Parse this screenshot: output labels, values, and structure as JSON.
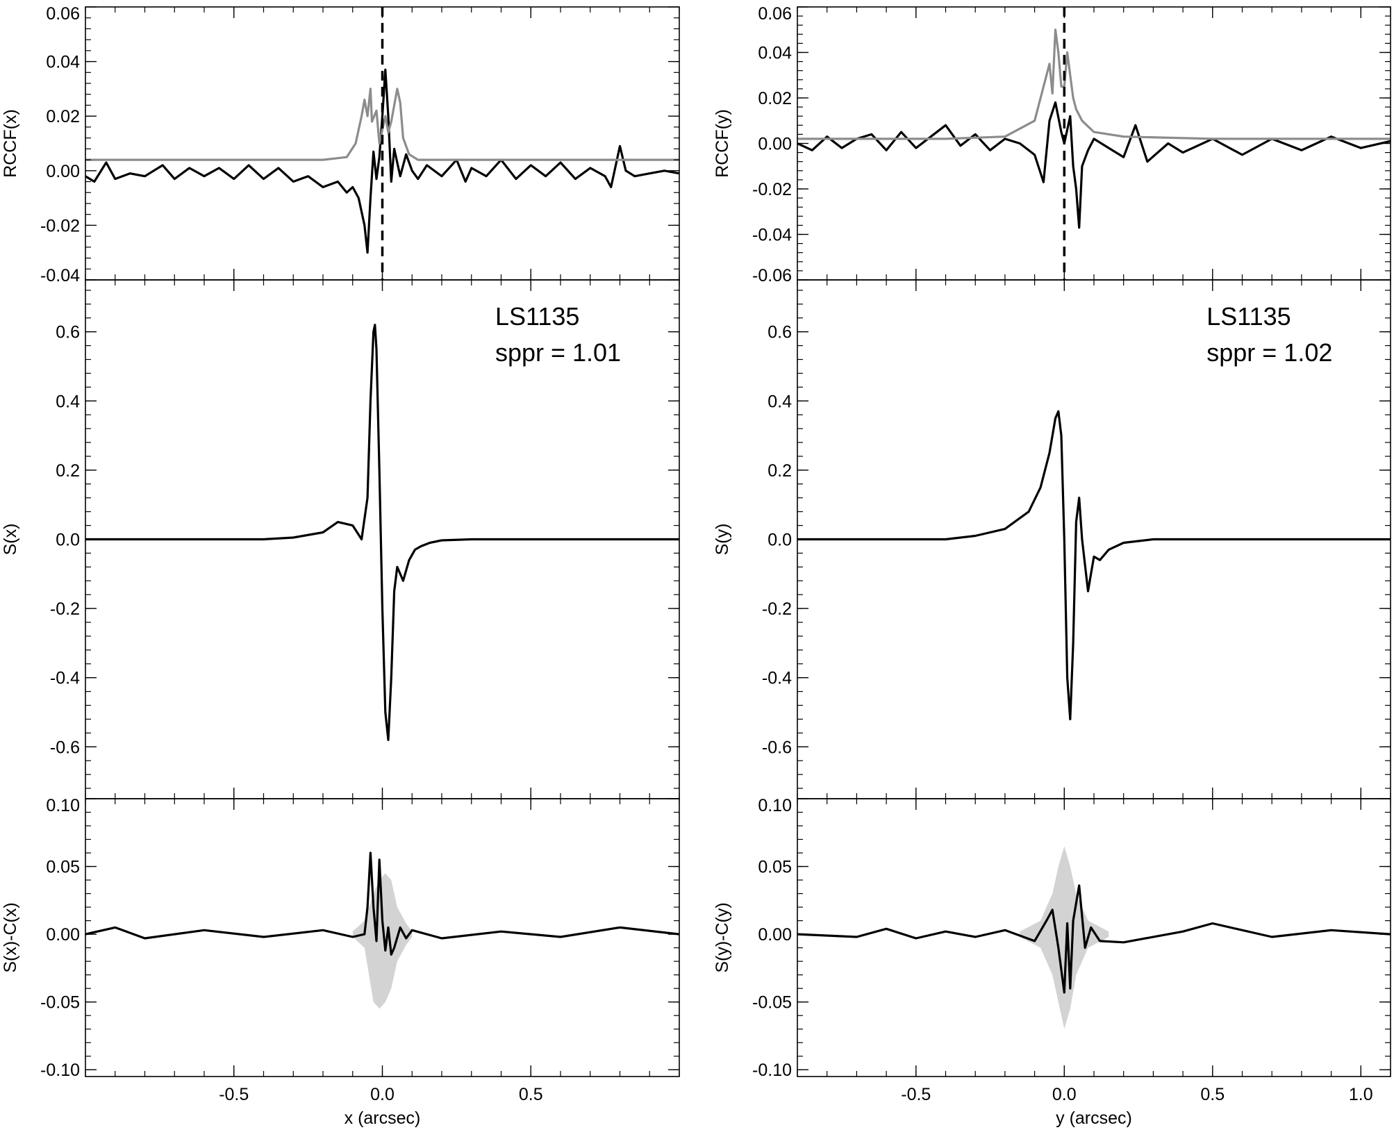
{
  "chart_data": [
    {
      "id": "rccf-x",
      "type": "line",
      "ylabel": "RCCF(x)",
      "xlim": [
        -1.0,
        1.0
      ],
      "ylim": [
        -0.04,
        0.06
      ],
      "y_ticks": [
        "-0.04",
        "-0.02",
        "0.00",
        "0.02",
        "0.04",
        "0.06"
      ],
      "vline_x": 0.0,
      "series": [
        {
          "color": "#000000",
          "x": [
            -1.0,
            -0.97,
            -0.93,
            -0.9,
            -0.85,
            -0.8,
            -0.74,
            -0.7,
            -0.65,
            -0.6,
            -0.55,
            -0.5,
            -0.45,
            -0.4,
            -0.35,
            -0.3,
            -0.25,
            -0.2,
            -0.15,
            -0.12,
            -0.1,
            -0.08,
            -0.06,
            -0.05,
            -0.04,
            -0.03,
            -0.02,
            -0.01,
            0.0,
            0.01,
            0.02,
            0.03,
            0.04,
            0.06,
            0.08,
            0.1,
            0.12,
            0.15,
            0.2,
            0.25,
            0.28,
            0.3,
            0.35,
            0.4,
            0.45,
            0.5,
            0.55,
            0.6,
            0.65,
            0.7,
            0.75,
            0.77,
            0.8,
            0.82,
            0.85,
            0.9,
            0.95,
            1.0
          ],
          "values": [
            -0.002,
            -0.004,
            0.003,
            -0.003,
            -0.001,
            -0.002,
            0.002,
            -0.003,
            0.001,
            -0.002,
            0.001,
            -0.003,
            0.002,
            -0.003,
            0.001,
            -0.004,
            -0.002,
            -0.006,
            -0.004,
            -0.008,
            -0.006,
            -0.01,
            -0.02,
            -0.03,
            -0.01,
            0.007,
            -0.003,
            0.005,
            0.02,
            0.037,
            0.02,
            -0.004,
            0.008,
            -0.002,
            0.006,
            0.0,
            -0.003,
            0.002,
            -0.002,
            0.004,
            -0.004,
            0.001,
            -0.002,
            0.004,
            -0.003,
            0.002,
            -0.002,
            0.003,
            -0.003,
            0.001,
            -0.002,
            -0.006,
            0.009,
            0.0,
            -0.002,
            -0.001,
            0.0,
            -0.001
          ]
        },
        {
          "color": "#8c8c8c",
          "x": [
            -1.0,
            -0.5,
            -0.2,
            -0.12,
            -0.09,
            -0.07,
            -0.06,
            -0.05,
            -0.04,
            -0.035,
            -0.02,
            -0.01,
            0.0,
            0.01,
            0.02,
            0.03,
            0.05,
            0.06,
            0.07,
            0.09,
            0.12,
            0.2,
            0.5,
            1.0
          ],
          "values": [
            0.004,
            0.004,
            0.004,
            0.005,
            0.01,
            0.02,
            0.026,
            0.02,
            0.03,
            0.018,
            0.022,
            0.01,
            0.015,
            0.02,
            0.014,
            0.018,
            0.03,
            0.025,
            0.012,
            0.006,
            0.004,
            0.004,
            0.004,
            0.004
          ]
        }
      ]
    },
    {
      "id": "s-x",
      "type": "line",
      "ylabel": "S(x)",
      "xlim": [
        -1.0,
        1.0
      ],
      "ylim": [
        -0.75,
        0.75
      ],
      "y_ticks": [
        "-0.6",
        "-0.4",
        "-0.2",
        "0.0",
        "0.2",
        "0.4",
        "0.6"
      ],
      "annotations": [
        "LS1135",
        "sppr = 1.01"
      ],
      "series": [
        {
          "color": "#000000",
          "x": [
            -1.0,
            -0.8,
            -0.6,
            -0.4,
            -0.3,
            -0.2,
            -0.15,
            -0.1,
            -0.07,
            -0.05,
            -0.04,
            -0.03,
            -0.025,
            -0.02,
            -0.01,
            0.0,
            0.01,
            0.02,
            0.03,
            0.04,
            0.05,
            0.06,
            0.07,
            0.09,
            0.11,
            0.13,
            0.16,
            0.2,
            0.3,
            0.5,
            0.8,
            1.0
          ],
          "values": [
            0.0,
            0.0,
            0.0,
            0.0,
            0.005,
            0.02,
            0.05,
            0.04,
            0.0,
            0.12,
            0.4,
            0.6,
            0.62,
            0.55,
            0.2,
            -0.2,
            -0.5,
            -0.58,
            -0.4,
            -0.15,
            -0.08,
            -0.1,
            -0.12,
            -0.06,
            -0.03,
            -0.02,
            -0.01,
            -0.003,
            0.0,
            0.0,
            0.0,
            0.0
          ]
        }
      ]
    },
    {
      "id": "resid-x",
      "type": "line",
      "ylabel": "S(x)-C(x)",
      "xlabel": "x (arcsec)",
      "xlim": [
        -1.0,
        1.0
      ],
      "ylim": [
        -0.105,
        0.1
      ],
      "y_ticks": [
        "-0.10",
        "-0.05",
        "0.00",
        "0.05",
        "0.10"
      ],
      "x_ticks": [
        "-0.5",
        "0.0",
        "0.5"
      ],
      "x_tick_values": [
        -0.5,
        0.0,
        0.5
      ],
      "band": {
        "x": [
          -0.1,
          -0.06,
          -0.03,
          -0.01,
          0.01,
          0.03,
          0.05,
          0.08,
          0.1
        ],
        "upper": [
          0.002,
          0.01,
          0.03,
          0.04,
          0.045,
          0.04,
          0.02,
          0.008,
          0.002
        ],
        "lower": [
          -0.002,
          -0.01,
          -0.05,
          -0.055,
          -0.05,
          -0.04,
          -0.02,
          -0.008,
          -0.002
        ]
      },
      "series": [
        {
          "color": "#000000",
          "x": [
            -1.0,
            -0.9,
            -0.8,
            -0.6,
            -0.4,
            -0.2,
            -0.1,
            -0.06,
            -0.05,
            -0.04,
            -0.03,
            -0.02,
            -0.01,
            0.0,
            0.01,
            0.02,
            0.03,
            0.04,
            0.06,
            0.08,
            0.1,
            0.2,
            0.4,
            0.6,
            0.8,
            1.0
          ],
          "values": [
            0.0,
            0.005,
            -0.003,
            0.003,
            -0.002,
            0.003,
            -0.002,
            0.0,
            0.02,
            0.06,
            0.02,
            -0.005,
            0.055,
            0.01,
            -0.012,
            0.005,
            -0.015,
            -0.01,
            0.005,
            -0.003,
            0.003,
            -0.003,
            0.002,
            -0.002,
            0.005,
            0.0
          ]
        }
      ]
    },
    {
      "id": "rccf-y",
      "type": "line",
      "ylabel": "RCCF(y)",
      "xlim": [
        -0.9,
        1.1
      ],
      "ylim": [
        -0.06,
        0.06
      ],
      "y_ticks": [
        "-0.06",
        "-0.04",
        "-0.02",
        "0.00",
        "0.02",
        "0.04",
        "0.06"
      ],
      "vline_x": 0.0,
      "series": [
        {
          "color": "#000000",
          "x": [
            -0.9,
            -0.85,
            -0.8,
            -0.75,
            -0.7,
            -0.65,
            -0.6,
            -0.55,
            -0.5,
            -0.45,
            -0.4,
            -0.35,
            -0.3,
            -0.25,
            -0.2,
            -0.15,
            -0.1,
            -0.07,
            -0.05,
            -0.03,
            -0.01,
            0.0,
            0.02,
            0.03,
            0.04,
            0.05,
            0.06,
            0.08,
            0.1,
            0.15,
            0.2,
            0.24,
            0.28,
            0.35,
            0.4,
            0.5,
            0.6,
            0.7,
            0.8,
            0.9,
            1.0,
            1.1
          ],
          "values": [
            0.0,
            -0.003,
            0.003,
            -0.002,
            0.002,
            0.004,
            -0.003,
            0.005,
            -0.002,
            0.003,
            0.008,
            -0.001,
            0.004,
            -0.003,
            0.002,
            0.0,
            -0.005,
            -0.017,
            0.01,
            0.018,
            0.005,
            0.0,
            0.012,
            -0.01,
            -0.02,
            -0.037,
            -0.01,
            -0.003,
            0.002,
            -0.002,
            -0.006,
            0.008,
            -0.008,
            0.0,
            -0.004,
            0.002,
            -0.005,
            0.002,
            -0.003,
            0.003,
            -0.002,
            0.001
          ]
        },
        {
          "color": "#8c8c8c",
          "x": [
            -0.9,
            -0.4,
            -0.2,
            -0.1,
            -0.06,
            -0.05,
            -0.04,
            -0.03,
            -0.02,
            -0.01,
            0.0,
            0.01,
            0.02,
            0.03,
            0.04,
            0.06,
            0.1,
            0.2,
            0.5,
            1.1
          ],
          "values": [
            0.002,
            0.002,
            0.003,
            0.01,
            0.03,
            0.035,
            0.022,
            0.05,
            0.04,
            0.025,
            0.025,
            0.04,
            0.03,
            0.02,
            0.015,
            0.01,
            0.005,
            0.003,
            0.002,
            0.002
          ]
        }
      ]
    },
    {
      "id": "s-y",
      "type": "line",
      "ylabel": "S(y)",
      "xlim": [
        -0.9,
        1.1
      ],
      "ylim": [
        -0.75,
        0.75
      ],
      "y_ticks": [
        "-0.6",
        "-0.4",
        "-0.2",
        "0.0",
        "0.2",
        "0.4",
        "0.6"
      ],
      "annotations": [
        "LS1135",
        "sppr = 1.02"
      ],
      "series": [
        {
          "color": "#000000",
          "x": [
            -0.9,
            -0.6,
            -0.4,
            -0.3,
            -0.2,
            -0.12,
            -0.08,
            -0.05,
            -0.03,
            -0.02,
            -0.01,
            0.0,
            0.01,
            0.02,
            0.03,
            0.04,
            0.05,
            0.06,
            0.08,
            0.09,
            0.1,
            0.12,
            0.15,
            0.2,
            0.3,
            0.5,
            0.8,
            1.1
          ],
          "values": [
            0.0,
            0.0,
            0.0,
            0.01,
            0.03,
            0.08,
            0.15,
            0.25,
            0.35,
            0.37,
            0.3,
            0.0,
            -0.4,
            -0.52,
            -0.3,
            0.05,
            0.12,
            0.0,
            -0.15,
            -0.1,
            -0.05,
            -0.06,
            -0.03,
            -0.01,
            0.0,
            0.0,
            0.0,
            0.0
          ]
        }
      ]
    },
    {
      "id": "resid-y",
      "type": "line",
      "ylabel": "S(y)-C(y)",
      "xlabel": "y (arcsec)",
      "xlim": [
        -0.9,
        1.1
      ],
      "ylim": [
        -0.105,
        0.1
      ],
      "y_ticks": [
        "-0.10",
        "-0.05",
        "0.00",
        "0.05",
        "0.10"
      ],
      "x_ticks": [
        "-0.5",
        "0.0",
        "0.5",
        "1.0"
      ],
      "x_tick_values": [
        -0.5,
        0.0,
        0.5,
        1.0
      ],
      "band": {
        "x": [
          -0.15,
          -0.08,
          -0.04,
          -0.02,
          0.0,
          0.02,
          0.04,
          0.08,
          0.15
        ],
        "upper": [
          0.002,
          0.01,
          0.03,
          0.05,
          0.065,
          0.05,
          0.03,
          0.01,
          0.002
        ],
        "lower": [
          -0.002,
          -0.01,
          -0.03,
          -0.05,
          -0.07,
          -0.055,
          -0.03,
          -0.01,
          -0.002
        ]
      },
      "series": [
        {
          "color": "#000000",
          "x": [
            -0.9,
            -0.7,
            -0.6,
            -0.5,
            -0.4,
            -0.3,
            -0.2,
            -0.1,
            -0.06,
            -0.04,
            -0.02,
            0.0,
            0.01,
            0.02,
            0.03,
            0.05,
            0.07,
            0.09,
            0.12,
            0.2,
            0.4,
            0.5,
            0.7,
            0.9,
            1.1
          ],
          "values": [
            0.0,
            -0.002,
            0.004,
            -0.003,
            0.002,
            -0.002,
            0.003,
            -0.005,
            0.01,
            0.018,
            -0.01,
            -0.043,
            0.008,
            -0.04,
            0.01,
            0.036,
            -0.01,
            0.005,
            -0.005,
            -0.006,
            0.002,
            0.008,
            -0.002,
            0.003,
            0.0
          ]
        }
      ]
    }
  ]
}
